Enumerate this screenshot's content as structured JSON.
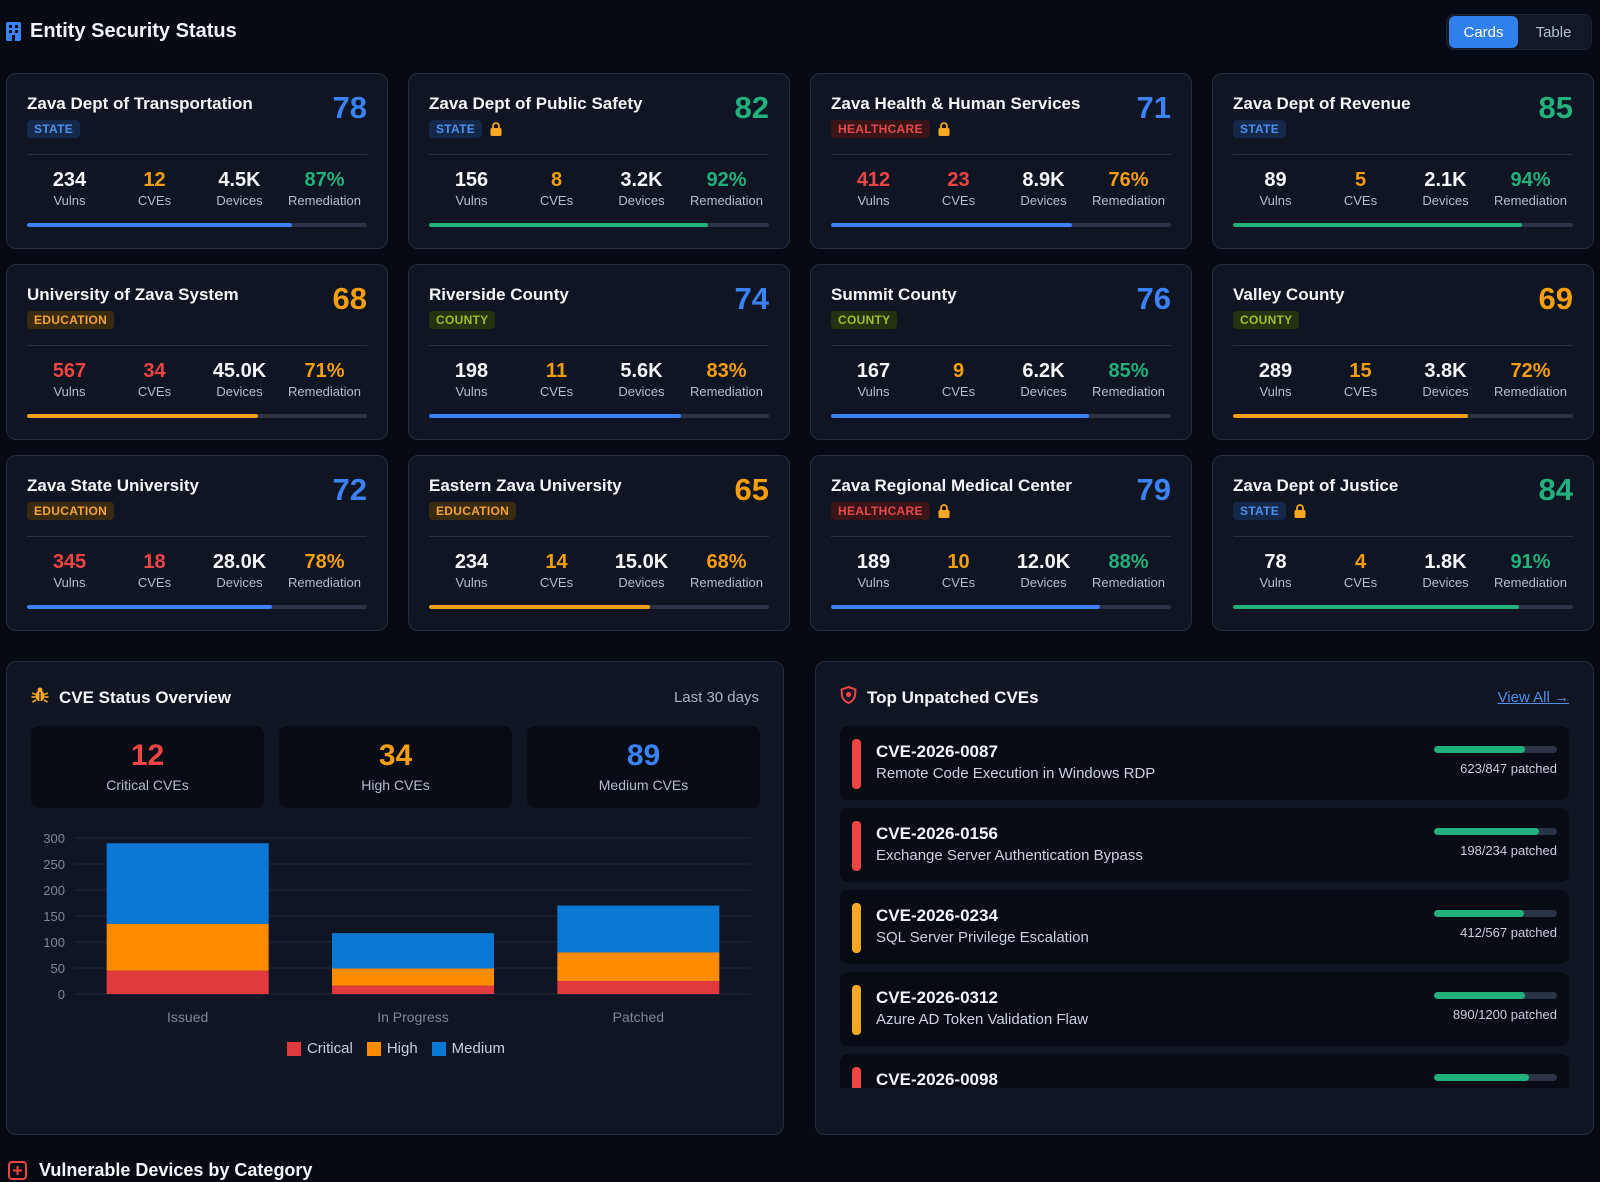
{
  "header": {
    "title": "Entity Security Status",
    "view_toggle": {
      "cards_label": "Cards",
      "table_label": "Table",
      "active": "Cards"
    }
  },
  "stat_labels": {
    "vulns": "Vulns",
    "cves": "CVEs",
    "devices": "Devices",
    "remediation": "Remediation"
  },
  "colors": {
    "blue": "#3b82f6",
    "green": "#22b07d",
    "orange": "#f59e0b",
    "red": "#ef4444",
    "white": "#f3f5f9"
  },
  "entities": [
    {
      "name": "Zava Dept of Transportation",
      "type": "STATE",
      "locked": false,
      "score": "78",
      "score_color": "blue",
      "vulns": "234",
      "vulns_color": "white",
      "cves": "12",
      "cves_color": "orange",
      "devices": "4.5K",
      "remediation": "87%",
      "remediation_color": "green",
      "progress": 0.78,
      "progress_color": "blue"
    },
    {
      "name": "Zava Dept of Public Safety",
      "type": "STATE",
      "locked": true,
      "score": "82",
      "score_color": "green",
      "vulns": "156",
      "vulns_color": "white",
      "cves": "8",
      "cves_color": "orange",
      "devices": "3.2K",
      "remediation": "92%",
      "remediation_color": "green",
      "progress": 0.82,
      "progress_color": "green"
    },
    {
      "name": "Zava Health & Human Services",
      "type": "HEALTHCARE",
      "locked": true,
      "score": "71",
      "score_color": "blue",
      "vulns": "412",
      "vulns_color": "red",
      "cves": "23",
      "cves_color": "red",
      "devices": "8.9K",
      "remediation": "76%",
      "remediation_color": "orange",
      "progress": 0.71,
      "progress_color": "blue"
    },
    {
      "name": "Zava Dept of Revenue",
      "type": "STATE",
      "locked": false,
      "score": "85",
      "score_color": "green",
      "vulns": "89",
      "vulns_color": "white",
      "cves": "5",
      "cves_color": "orange",
      "devices": "2.1K",
      "remediation": "94%",
      "remediation_color": "green",
      "progress": 0.85,
      "progress_color": "green"
    },
    {
      "name": "University of Zava System",
      "type": "EDUCATION",
      "locked": false,
      "score": "68",
      "score_color": "orange",
      "vulns": "567",
      "vulns_color": "red",
      "cves": "34",
      "cves_color": "red",
      "devices": "45.0K",
      "remediation": "71%",
      "remediation_color": "orange",
      "progress": 0.68,
      "progress_color": "orange"
    },
    {
      "name": "Riverside County",
      "type": "COUNTY",
      "locked": false,
      "score": "74",
      "score_color": "blue",
      "vulns": "198",
      "vulns_color": "white",
      "cves": "11",
      "cves_color": "orange",
      "devices": "5.6K",
      "remediation": "83%",
      "remediation_color": "orange",
      "progress": 0.74,
      "progress_color": "blue"
    },
    {
      "name": "Summit County",
      "type": "COUNTY",
      "locked": false,
      "score": "76",
      "score_color": "blue",
      "vulns": "167",
      "vulns_color": "white",
      "cves": "9",
      "cves_color": "orange",
      "devices": "6.2K",
      "remediation": "85%",
      "remediation_color": "green",
      "progress": 0.76,
      "progress_color": "blue"
    },
    {
      "name": "Valley County",
      "type": "COUNTY",
      "locked": false,
      "score": "69",
      "score_color": "orange",
      "vulns": "289",
      "vulns_color": "white",
      "cves": "15",
      "cves_color": "orange",
      "devices": "3.8K",
      "remediation": "72%",
      "remediation_color": "orange",
      "progress": 0.69,
      "progress_color": "orange"
    },
    {
      "name": "Zava State University",
      "type": "EDUCATION",
      "locked": false,
      "score": "72",
      "score_color": "blue",
      "vulns": "345",
      "vulns_color": "red",
      "cves": "18",
      "cves_color": "red",
      "devices": "28.0K",
      "remediation": "78%",
      "remediation_color": "orange",
      "progress": 0.72,
      "progress_color": "blue"
    },
    {
      "name": "Eastern Zava University",
      "type": "EDUCATION",
      "locked": false,
      "score": "65",
      "score_color": "orange",
      "vulns": "234",
      "vulns_color": "white",
      "cves": "14",
      "cves_color": "orange",
      "devices": "15.0K",
      "remediation": "68%",
      "remediation_color": "orange",
      "progress": 0.65,
      "progress_color": "orange"
    },
    {
      "name": "Zava Regional Medical Center",
      "type": "HEALTHCARE",
      "locked": true,
      "score": "79",
      "score_color": "blue",
      "vulns": "189",
      "vulns_color": "white",
      "cves": "10",
      "cves_color": "orange",
      "devices": "12.0K",
      "remediation": "88%",
      "remediation_color": "green",
      "progress": 0.79,
      "progress_color": "blue"
    },
    {
      "name": "Zava Dept of Justice",
      "type": "STATE",
      "locked": true,
      "score": "84",
      "score_color": "green",
      "vulns": "78",
      "vulns_color": "white",
      "cves": "4",
      "cves_color": "orange",
      "devices": "1.8K",
      "remediation": "91%",
      "remediation_color": "green",
      "progress": 0.84,
      "progress_color": "green"
    }
  ],
  "cve_overview": {
    "title": "CVE Status Overview",
    "icon": "bug-icon",
    "period": "Last 30 days",
    "summary": [
      {
        "value": "12",
        "label": "Critical CVEs",
        "color": "#ef4444"
      },
      {
        "value": "34",
        "label": "High CVEs",
        "color": "#f59e0b"
      },
      {
        "value": "89",
        "label": "Medium CVEs",
        "color": "#3b82f6"
      }
    ]
  },
  "chart_data": {
    "type": "bar",
    "stacked": true,
    "categories": [
      "Issued",
      "In Progress",
      "Patched"
    ],
    "series": [
      {
        "name": "Critical",
        "color": "#e0393e",
        "values": [
          45,
          16,
          25
        ]
      },
      {
        "name": "High",
        "color": "#ff8c00",
        "values": [
          90,
          33,
          55
        ]
      },
      {
        "name": "Medium",
        "color": "#0a78d4",
        "values": [
          155,
          68,
          90
        ]
      }
    ],
    "ylim": [
      0,
      300
    ],
    "yticks": [
      0,
      50,
      100,
      150,
      200,
      250,
      300
    ],
    "grid": true,
    "legend": "bottom"
  },
  "top_cves": {
    "title": "Top Unpatched CVEs",
    "icon": "shield-alert-icon",
    "view_all": "View All →",
    "items": [
      {
        "id": "CVE-2026-0087",
        "desc": "Remote Code Execution in Windows RDP",
        "severity": "critical",
        "patched": "623/847 patched",
        "fraction": 0.74
      },
      {
        "id": "CVE-2026-0156",
        "desc": "Exchange Server Authentication Bypass",
        "severity": "critical",
        "patched": "198/234 patched",
        "fraction": 0.85
      },
      {
        "id": "CVE-2026-0234",
        "desc": "SQL Server Privilege Escalation",
        "severity": "high",
        "patched": "412/567 patched",
        "fraction": 0.73
      },
      {
        "id": "CVE-2026-0312",
        "desc": "Azure AD Token Validation Flaw",
        "severity": "high",
        "patched": "890/1200 patched",
        "fraction": 0.74
      },
      {
        "id": "CVE-2026-0098",
        "desc": "",
        "severity": "critical",
        "patched": "",
        "fraction": 0.77
      }
    ]
  },
  "bottom_section": {
    "title": "Vulnerable Devices by Category",
    "icon": "plus-box-icon"
  }
}
